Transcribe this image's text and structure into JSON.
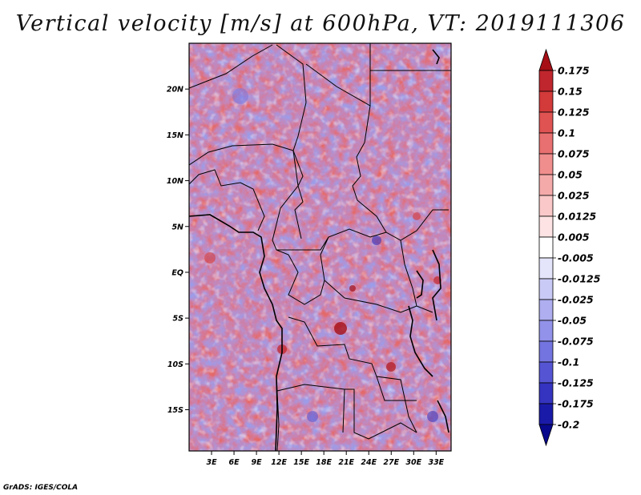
{
  "title": "Vertical velocity [m/s] at 600hPa, VT: 2019111306",
  "credit": "GrADS: IGES/COLA",
  "map": {
    "lat_labels": [
      "20N",
      "15N",
      "10N",
      "5N",
      "EQ",
      "5S",
      "10S",
      "15S"
    ],
    "lon_labels": [
      "3E",
      "6E",
      "9E",
      "12E",
      "15E",
      "18E",
      "21E",
      "24E",
      "27E",
      "30E",
      "33E"
    ],
    "lat_values": [
      20,
      15,
      10,
      5,
      0,
      -5,
      -10,
      -15
    ],
    "lon_values": [
      3,
      6,
      9,
      12,
      15,
      18,
      21,
      24,
      27,
      30,
      33
    ],
    "extent": {
      "lon_min": 0,
      "lon_max": 35,
      "lat_min": -19.5,
      "lat_max": 25
    }
  },
  "colorbar": {
    "labels": [
      "0.175",
      "0.15",
      "0.125",
      "0.1",
      "0.075",
      "0.05",
      "0.025",
      "0.0125",
      "0.005",
      "-0.005",
      "-0.0125",
      "-0.025",
      "-0.05",
      "-0.075",
      "-0.1",
      "-0.125",
      "-0.175",
      "-0.2"
    ],
    "colors": [
      "#a50f15",
      "#c0262d",
      "#d33a3a",
      "#e05353",
      "#e97070",
      "#f08e8e",
      "#f5aaaa",
      "#fac8c8",
      "#fde3e3",
      "#ffffff",
      "#e4e4fb",
      "#cacaf6",
      "#aeaef0",
      "#9292ea",
      "#7474e0",
      "#5555d4",
      "#3434c0",
      "#1a1aa8",
      "#08088c"
    ]
  }
}
